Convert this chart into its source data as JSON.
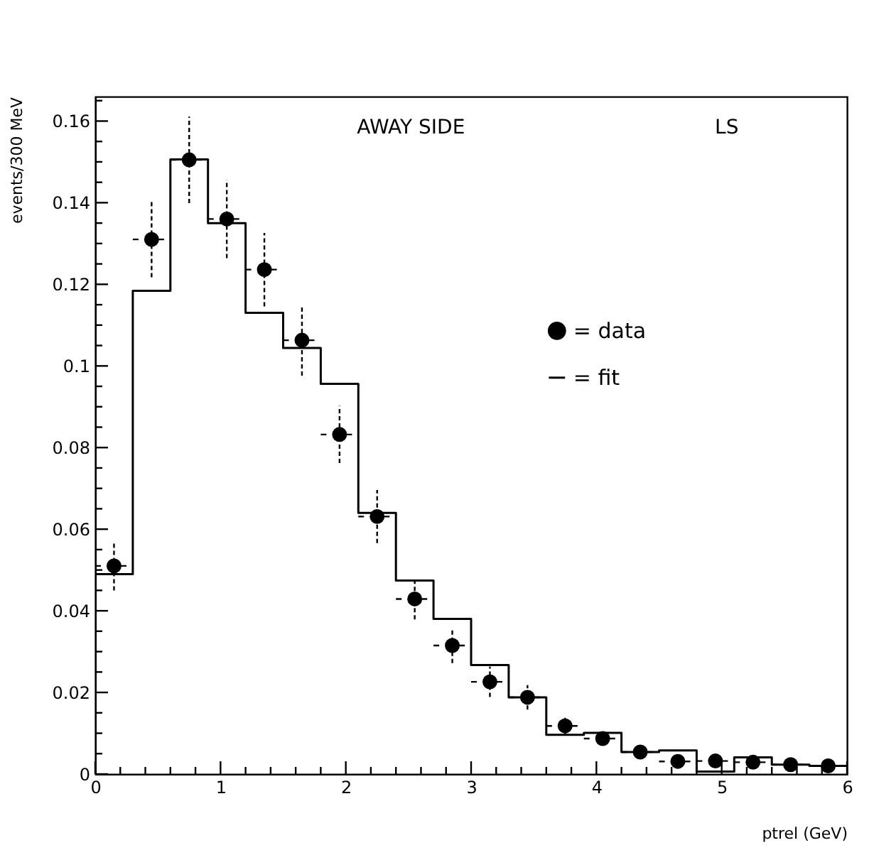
{
  "chart_data": {
    "type": "scatter",
    "xlabel": "ptrel (GeV)",
    "ylabel": "events/300 MeV",
    "annotations": [
      "AWAY SIDE",
      "LS"
    ],
    "xlim": [
      0,
      6
    ],
    "ylim": [
      0,
      0.166
    ],
    "xticks": [
      0,
      {
        "value": 0.2,
        "label": null
      },
      {
        "value": 0.4,
        "label": null
      },
      {
        "value": 0.6,
        "label": null
      },
      {
        "value": 0.8,
        "label": null
      },
      1,
      {
        "value": 1.2,
        "label": null
      },
      {
        "value": 1.4,
        "label": null
      },
      {
        "value": 1.6,
        "label": null
      },
      {
        "value": 1.8,
        "label": null
      },
      2,
      {
        "value": 2.2,
        "label": null
      },
      {
        "value": 2.4,
        "label": null
      },
      {
        "value": 2.6,
        "label": null
      },
      {
        "value": 2.8,
        "label": null
      },
      3,
      {
        "value": 3.2,
        "label": null
      },
      {
        "value": 3.4,
        "label": null
      },
      {
        "value": 3.6,
        "label": null
      },
      {
        "value": 3.8,
        "label": null
      },
      4,
      {
        "value": 4.2,
        "label": null
      },
      {
        "value": 4.4,
        "label": null
      },
      {
        "value": 4.6,
        "label": null
      },
      {
        "value": 4.8,
        "label": null
      },
      5,
      {
        "value": 5.2,
        "label": null
      },
      {
        "value": 5.4,
        "label": null
      },
      {
        "value": 5.6,
        "label": null
      },
      {
        "value": 5.8,
        "label": null
      },
      6
    ],
    "yticks": [
      0,
      {
        "value": 0.005,
        "label": null
      },
      {
        "value": 0.01,
        "label": null
      },
      {
        "value": 0.015,
        "label": null
      },
      0.02,
      {
        "value": 0.025,
        "label": null
      },
      {
        "value": 0.03,
        "label": null
      },
      {
        "value": 0.035,
        "label": null
      },
      0.04,
      {
        "value": 0.045,
        "label": null
      },
      {
        "value": 0.05,
        "label": null
      },
      {
        "value": 0.055,
        "label": null
      },
      0.06,
      {
        "value": 0.065,
        "label": null
      },
      {
        "value": 0.07,
        "label": null
      },
      {
        "value": 0.075,
        "label": null
      },
      0.08,
      {
        "value": 0.085,
        "label": null
      },
      {
        "value": 0.09,
        "label": null
      },
      {
        "value": 0.095,
        "label": null
      },
      0.1,
      {
        "value": 0.105,
        "label": null
      },
      {
        "value": 0.11,
        "label": null
      },
      {
        "value": 0.115,
        "label": null
      },
      0.12,
      {
        "value": 0.125,
        "label": null
      },
      {
        "value": 0.13,
        "label": null
      },
      {
        "value": 0.135,
        "label": null
      },
      0.14,
      {
        "value": 0.145,
        "label": null
      },
      {
        "value": 0.15,
        "label": null
      },
      {
        "value": 0.155,
        "label": null
      },
      0.16,
      {
        "value": 0.165,
        "label": null
      }
    ],
    "grid": false,
    "legend": "right",
    "marker": "circle",
    "series": [
      {
        "name": "= data",
        "color": "#000000",
        "x": [
          0.15,
          0.45,
          0.75,
          1.05,
          1.35,
          1.65,
          1.95,
          2.25,
          2.55,
          2.85,
          3.15,
          3.45,
          3.75,
          4.05,
          4.35,
          4.65,
          4.95,
          5.25,
          5.55,
          5.85
        ],
        "values": [
          0.051,
          0.131,
          0.1505,
          0.136,
          0.1236,
          0.1063,
          0.0832,
          0.0631,
          0.0429,
          0.0315,
          0.0226,
          0.0188,
          0.0118,
          0.0087,
          0.0054,
          0.0031,
          0.0032,
          0.0029,
          0.0023,
          0.002
        ],
        "errors": [
          0.006,
          0.0093,
          0.0106,
          0.0096,
          0.009,
          0.0087,
          0.007,
          0.0065,
          0.005,
          0.0043,
          0.0037,
          0.003,
          0.002,
          null,
          null,
          null,
          null,
          null,
          null,
          null
        ],
        "xerrors": [
          0.15,
          0.15,
          0.15,
          0.15,
          0.15,
          0.15,
          0.15,
          0.15,
          0.15,
          0.15,
          0.15,
          0.15,
          0.15,
          0.15,
          0.15,
          0.15,
          0.15,
          0.15,
          0.15,
          0.15
        ]
      },
      {
        "name": "= fit",
        "type": "histogram",
        "color": "#000000",
        "bins": [
          0,
          0.3,
          0.6,
          0.9,
          1.2,
          1.5,
          1.8,
          2.1,
          2.4,
          2.7,
          3,
          3.3,
          3.6,
          3.9,
          4.2,
          4.5,
          4.8,
          5.1,
          5.4,
          5.7,
          6
        ],
        "values": [
          0.049,
          0.1184,
          0.1506,
          0.135,
          0.113,
          0.1044,
          0.0956,
          0.064,
          0.0474,
          0.038,
          0.0267,
          0.0188,
          0.0096,
          0.0101,
          0.0054,
          0.0058,
          0.0006,
          0.0041,
          0.0023,
          0.002
        ]
      }
    ]
  }
}
